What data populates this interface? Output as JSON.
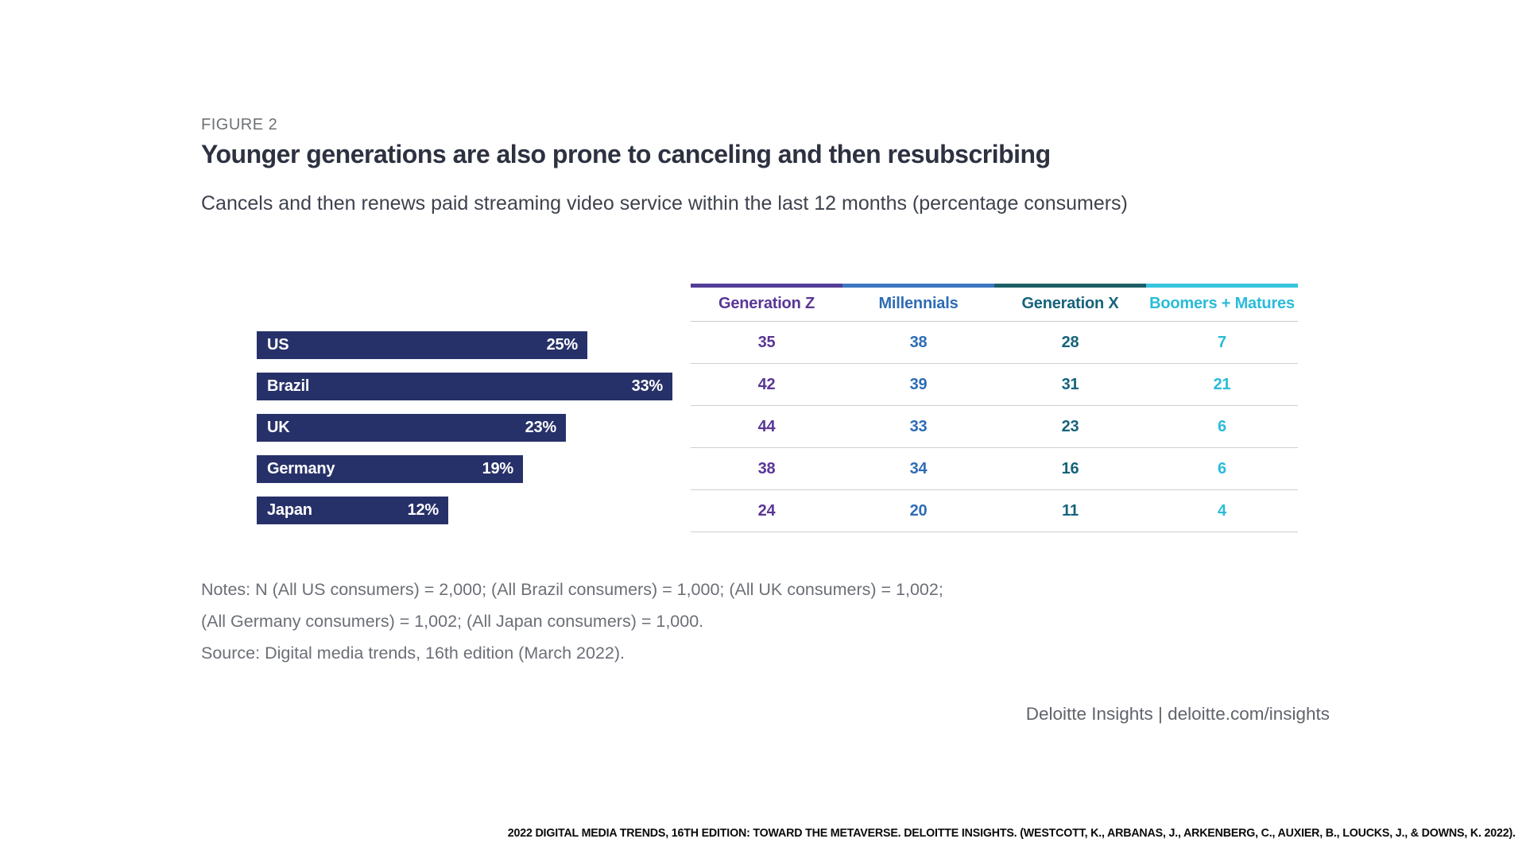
{
  "figure_label": "FIGURE 2",
  "title": "Younger generations are also prone to canceling and then resubscribing",
  "subtitle": "Cancels and then renews paid streaming video service within the last 12 months (percentage consumers)",
  "chart_data": {
    "type": "bar",
    "orientation": "horizontal",
    "title": "Cancels and then renews paid streaming video service within the last 12 months (percentage consumers)",
    "categories": [
      "US",
      "Brazil",
      "UK",
      "Germany",
      "Japan"
    ],
    "values": [
      25,
      33,
      23,
      19,
      12
    ],
    "value_labels": [
      "25%",
      "33%",
      "23%",
      "19%",
      "12%"
    ],
    "bar_color": "#273169",
    "xlim": [
      0,
      35
    ],
    "grid": false,
    "companion_table": {
      "columns": [
        {
          "label": "Generation Z",
          "text_color": "#5A3696",
          "band_color": "#533D96"
        },
        {
          "label": "Millennials",
          "text_color": "#2E6CB5",
          "band_color": "#3C78C1"
        },
        {
          "label": "Generation X",
          "text_color": "#16637B",
          "band_color": "#1D5F66"
        },
        {
          "label": "Boomers + Matures",
          "text_color": "#29BCD8",
          "band_color": "#36C4DE"
        }
      ],
      "rows": [
        {
          "country": "US",
          "values": [
            35,
            38,
            28,
            7
          ]
        },
        {
          "country": "Brazil",
          "values": [
            42,
            39,
            31,
            21
          ]
        },
        {
          "country": "UK",
          "values": [
            44,
            33,
            23,
            6
          ]
        },
        {
          "country": "Germany",
          "values": [
            38,
            34,
            16,
            6
          ]
        },
        {
          "country": "Japan",
          "values": [
            24,
            20,
            11,
            4
          ]
        }
      ]
    }
  },
  "notes_lines": [
    "Notes: N (All US consumers) = 2,000; (All Brazil consumers) = 1,000; (All UK consumers) = 1,002;",
    "(All Germany consumers) = 1,002; (All Japan consumers) = 1,000.",
    "Source: Digital media trends, 16th edition (March 2022)."
  ],
  "footer_brand": "Deloitte Insights | deloitte.com/insights",
  "citation": "2022 DIGITAL MEDIA TRENDS, 16TH EDITION: TOWARD THE METAVERSE. DELOITTE INSIGHTS. (WESTCOTT, K., ARBANAS, J., ARKENBERG, C., AUXIER, B., LOUCKS, J., & DOWNS, K. 2022)."
}
